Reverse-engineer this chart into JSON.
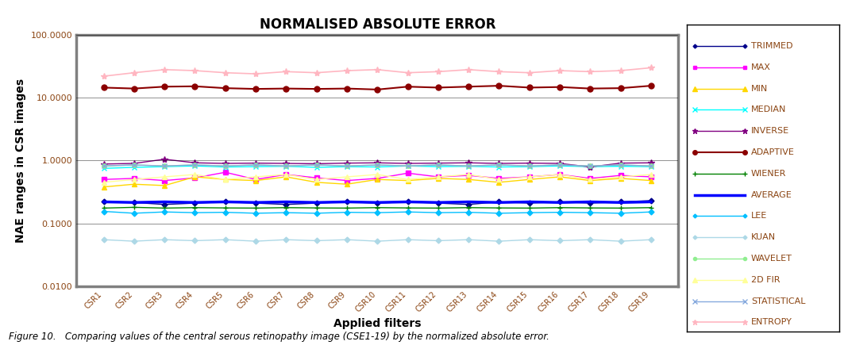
{
  "title": "NORMALISED ABSOLUTE ERROR",
  "xlabel": "Applied filters",
  "ylabel": "NAE ranges in CSR images",
  "x_labels": [
    "CSR1",
    "CSR2",
    "CSR3",
    "CSR4",
    "CSR5",
    "CSR6",
    "CSR7",
    "CSR8",
    "CSR9",
    "CSR10",
    "CSR11",
    "CSR12",
    "CSR13",
    "CSR14",
    "CSR15",
    "CSR16",
    "CSR17",
    "CSR18",
    "CSR19"
  ],
  "ylim_log": [
    0.01,
    100.0
  ],
  "series": {
    "TRIMMED": {
      "color": "#00008B",
      "marker": "D",
      "markersize": 3.5,
      "linewidth": 1.0,
      "values": [
        0.22,
        0.215,
        0.2,
        0.21,
        0.22,
        0.21,
        0.2,
        0.21,
        0.22,
        0.21,
        0.22,
        0.21,
        0.2,
        0.22,
        0.21,
        0.22,
        0.21,
        0.22,
        0.23
      ]
    },
    "MAX": {
      "color": "#FF00FF",
      "marker": "s",
      "markersize": 4,
      "linewidth": 1.0,
      "values": [
        0.5,
        0.52,
        0.48,
        0.53,
        0.65,
        0.5,
        0.6,
        0.53,
        0.48,
        0.52,
        0.63,
        0.55,
        0.58,
        0.52,
        0.55,
        0.6,
        0.52,
        0.58,
        0.55
      ]
    },
    "MIN": {
      "color": "#FFD700",
      "marker": "^",
      "markersize": 5,
      "linewidth": 1.0,
      "values": [
        0.38,
        0.42,
        0.4,
        0.55,
        0.5,
        0.48,
        0.55,
        0.45,
        0.42,
        0.5,
        0.48,
        0.52,
        0.5,
        0.45,
        0.5,
        0.55,
        0.48,
        0.52,
        0.48
      ]
    },
    "MEDIAN": {
      "color": "#00FFFF",
      "marker": "x",
      "markersize": 5,
      "linewidth": 1.0,
      "values": [
        0.75,
        0.78,
        0.8,
        0.82,
        0.79,
        0.8,
        0.81,
        0.78,
        0.8,
        0.79,
        0.82,
        0.8,
        0.81,
        0.79,
        0.8,
        0.82,
        0.8,
        0.81,
        0.8
      ]
    },
    "INVERSE": {
      "color": "#800080",
      "marker": "*",
      "markersize": 6,
      "linewidth": 1.0,
      "values": [
        0.88,
        0.9,
        1.05,
        0.92,
        0.9,
        0.91,
        0.9,
        0.89,
        0.91,
        0.92,
        0.9,
        0.91,
        0.92,
        0.9,
        0.91,
        0.9,
        0.79,
        0.91,
        0.92
      ]
    },
    "ADAPTIVE": {
      "color": "#8B0000",
      "marker": "o",
      "markersize": 5,
      "linewidth": 1.5,
      "values": [
        14.5,
        14.0,
        15.0,
        15.2,
        14.2,
        13.8,
        14.0,
        13.8,
        14.0,
        13.5,
        15.0,
        14.5,
        15.0,
        15.5,
        14.5,
        14.8,
        14.0,
        14.2,
        15.5
      ]
    },
    "WIENER": {
      "color": "#008000",
      "marker": "+",
      "markersize": 5,
      "linewidth": 1.0,
      "values": [
        0.175,
        0.18,
        0.175,
        0.178,
        0.176,
        0.175,
        0.178,
        0.176,
        0.175,
        0.178,
        0.176,
        0.175,
        0.178,
        0.176,
        0.175,
        0.178,
        0.176,
        0.175,
        0.178
      ]
    },
    "AVERAGE": {
      "color": "#0000FF",
      "marker": "None",
      "markersize": 0,
      "linewidth": 2.5,
      "values": [
        0.22,
        0.215,
        0.22,
        0.215,
        0.22,
        0.215,
        0.22,
        0.215,
        0.22,
        0.215,
        0.22,
        0.215,
        0.22,
        0.215,
        0.22,
        0.215,
        0.22,
        0.215,
        0.22
      ]
    },
    "LEE": {
      "color": "#00BFFF",
      "marker": "D",
      "markersize": 3.5,
      "linewidth": 1.0,
      "values": [
        0.155,
        0.145,
        0.152,
        0.148,
        0.15,
        0.145,
        0.148,
        0.145,
        0.15,
        0.148,
        0.152,
        0.148,
        0.15,
        0.145,
        0.148,
        0.15,
        0.148,
        0.145,
        0.152
      ]
    },
    "KUAN": {
      "color": "#ADD8E6",
      "marker": "D",
      "markersize": 3.5,
      "linewidth": 1.0,
      "values": [
        0.055,
        0.052,
        0.055,
        0.053,
        0.055,
        0.052,
        0.055,
        0.053,
        0.055,
        0.052,
        0.055,
        0.053,
        0.055,
        0.052,
        0.055,
        0.053,
        0.055,
        0.052,
        0.055
      ]
    },
    "WAVELET": {
      "color": "#90EE90",
      "marker": "o",
      "markersize": 4,
      "linewidth": 1.0,
      "values": [
        0.82,
        0.85,
        0.82,
        0.85,
        0.82,
        0.85,
        0.82,
        0.85,
        0.82,
        0.85,
        0.82,
        0.85,
        0.82,
        0.85,
        0.82,
        0.85,
        0.82,
        0.85,
        0.82
      ]
    },
    "2D FIR": {
      "color": "#FFFF99",
      "marker": "^",
      "markersize": 5,
      "linewidth": 1.0,
      "values": [
        0.45,
        0.5,
        0.55,
        0.6,
        0.5,
        0.55,
        0.6,
        0.5,
        0.55,
        0.6,
        0.5,
        0.55,
        0.6,
        0.5,
        0.55,
        0.6,
        0.5,
        0.55,
        0.6
      ]
    },
    "STATISTICAL": {
      "color": "#87AADE",
      "marker": "x",
      "markersize": 5,
      "linewidth": 1.0,
      "values": [
        0.82,
        0.85,
        0.82,
        0.85,
        0.82,
        0.85,
        0.82,
        0.85,
        0.82,
        0.85,
        0.82,
        0.85,
        0.82,
        0.85,
        0.82,
        0.85,
        0.82,
        0.85,
        0.82
      ]
    },
    "ENTROPY": {
      "color": "#FFB6C1",
      "marker": "*",
      "markersize": 6,
      "linewidth": 1.2,
      "values": [
        22.0,
        25.0,
        28.0,
        27.0,
        25.0,
        24.0,
        26.0,
        25.0,
        27.0,
        28.0,
        25.0,
        26.0,
        28.0,
        26.0,
        25.0,
        27.0,
        26.0,
        27.0,
        30.0
      ]
    }
  },
  "legend_order": [
    "TRIMMED",
    "MAX",
    "MIN",
    "MEDIAN",
    "INVERSE",
    "ADAPTIVE",
    "WIENER",
    "AVERAGE",
    "LEE",
    "KUAN",
    "WAVELET",
    "2D FIR",
    "STATISTICAL",
    "ENTROPY"
  ],
  "title_fontsize": 12,
  "label_fontsize": 10,
  "tick_fontsize": 8,
  "legend_fontsize": 8,
  "ytick_labels": [
    "0.0100",
    "0.1000",
    "1.0000",
    "10.0000",
    "100.0000"
  ],
  "ytick_values": [
    0.01,
    0.1,
    1.0,
    10.0,
    100.0
  ],
  "background_color": "#ffffff",
  "plot_bg_color": "#ffffff",
  "caption": "Figure 10.   Comparing values of the central serous retinopathy image (CSE1-19) by the normalized absolute error."
}
